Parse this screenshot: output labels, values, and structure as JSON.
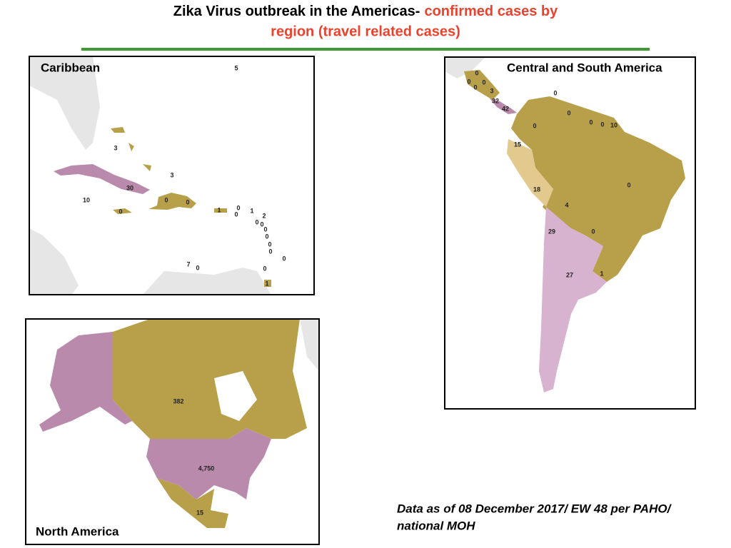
{
  "title": {
    "line1_black": "Zika Virus outbreak in the Americas-",
    "line1_red": "confirmed cases by",
    "line2_red": "region (travel related cases)"
  },
  "panels": [
    {
      "title": "Caribbean",
      "labels": [
        "5",
        "3",
        "3",
        "30",
        "10",
        "0",
        "0",
        "0",
        "1",
        "0",
        "0",
        "1",
        "2",
        "0",
        "0",
        "0",
        "0",
        "0",
        "0",
        "0",
        "7",
        "0",
        "0",
        "1"
      ]
    },
    {
      "title": "Central and South America",
      "labels": [
        "0",
        "0",
        "0",
        "0",
        "3",
        "32",
        "42",
        "0",
        "0",
        "0",
        "0",
        "0",
        "10",
        "15",
        "18",
        "4",
        "0",
        "29",
        "0",
        "27",
        "1"
      ]
    },
    {
      "title": "North America",
      "labels": [
        "382",
        "4,750",
        "15"
      ]
    }
  ],
  "footnote": {
    "line1": "Data as of 08 December 2017/ EW 48 per PAHO/",
    "line2": "national MOH"
  }
}
